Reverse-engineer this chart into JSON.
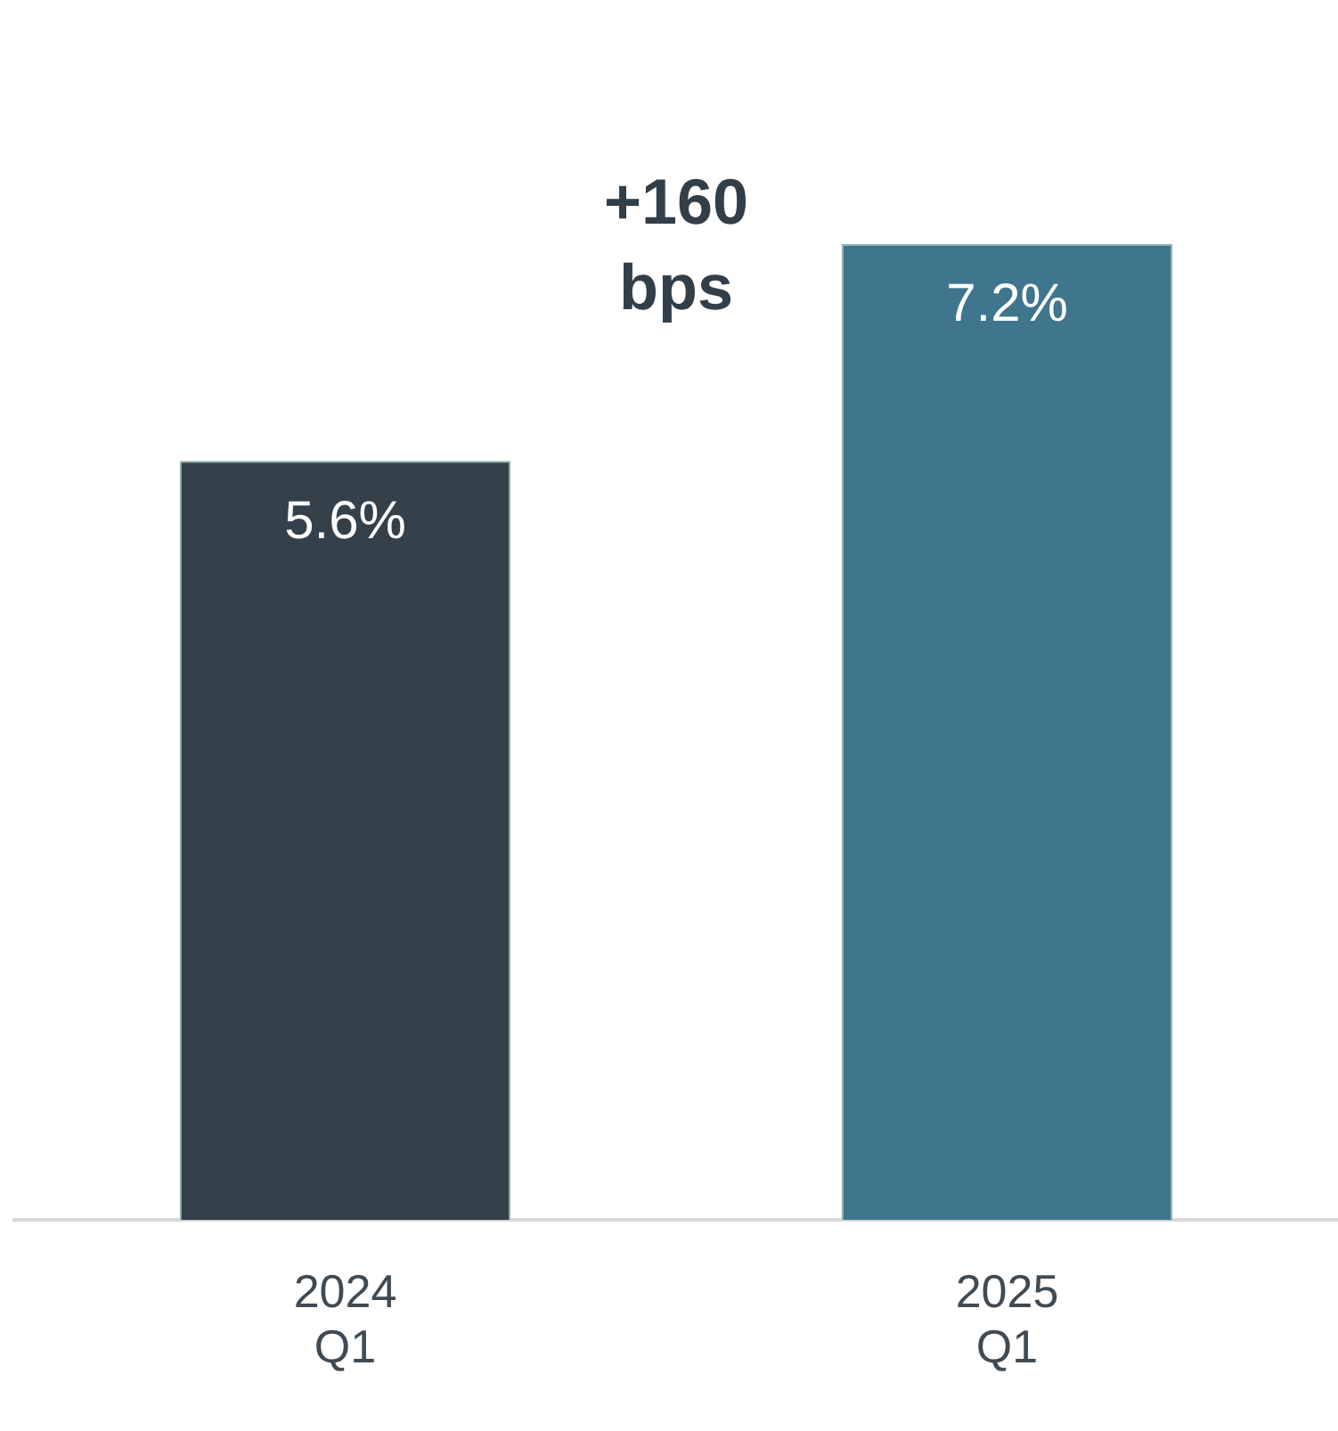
{
  "chart_data": {
    "type": "bar",
    "categories": [
      "2024\nQ1",
      "2025\nQ1"
    ],
    "values": [
      5.6,
      7.2
    ],
    "colors": [
      "#34404a",
      "#40758e"
    ],
    "data_labels": true,
    "value_labels": [
      "5.6%",
      "7.2%"
    ],
    "annotations": [
      "+160\nbps"
    ],
    "legend": false,
    "grid": false
  }
}
